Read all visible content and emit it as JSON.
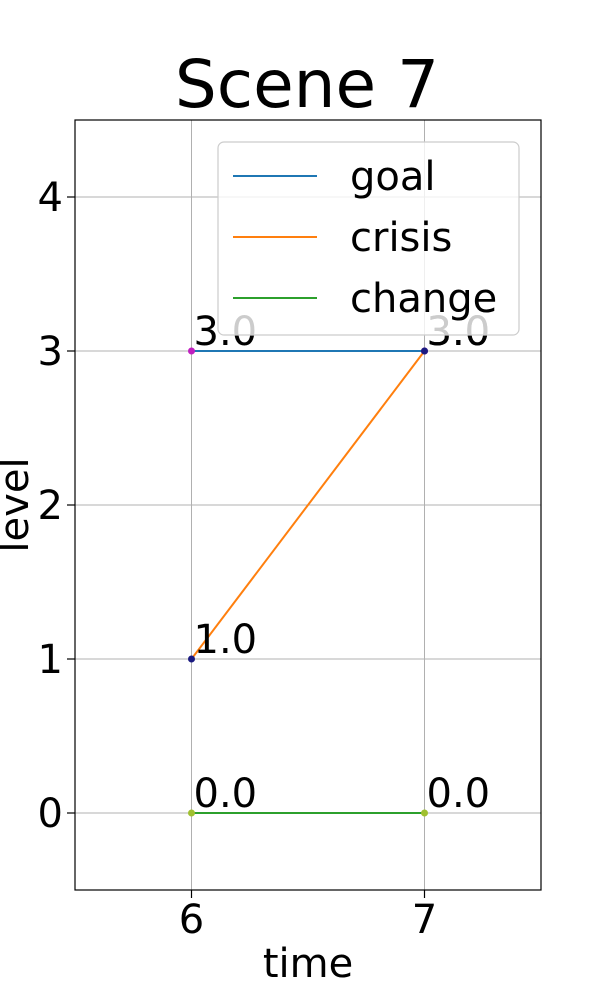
{
  "chart_data": {
    "type": "line",
    "title": "Scene 7",
    "xlabel": "time",
    "ylabel": "level",
    "xlim": [
      5.5,
      7.5
    ],
    "ylim": [
      -0.5,
      4.5
    ],
    "x_ticks": [
      6,
      7
    ],
    "y_ticks": [
      0,
      1,
      2,
      3,
      4
    ],
    "grid": true,
    "legend_position": "top-right",
    "series": [
      {
        "name": "goal",
        "color": "#1f77b4",
        "x": [
          6,
          7
        ],
        "y": [
          3.0,
          3.0
        ],
        "labels": [
          "3.0",
          "3.0"
        ],
        "marker_color": "#c020c0"
      },
      {
        "name": "crisis",
        "color": "#ff7f0e",
        "x": [
          6,
          7
        ],
        "y": [
          1.0,
          3.0
        ],
        "labels": [
          "1.0",
          "3.0"
        ],
        "marker_color": "#1a1a80"
      },
      {
        "name": "change",
        "color": "#2ca02c",
        "x": [
          6,
          7
        ],
        "y": [
          0.0,
          0.0
        ],
        "labels": [
          "0.0",
          "0.0"
        ],
        "marker_color": "#a0c030"
      }
    ]
  }
}
